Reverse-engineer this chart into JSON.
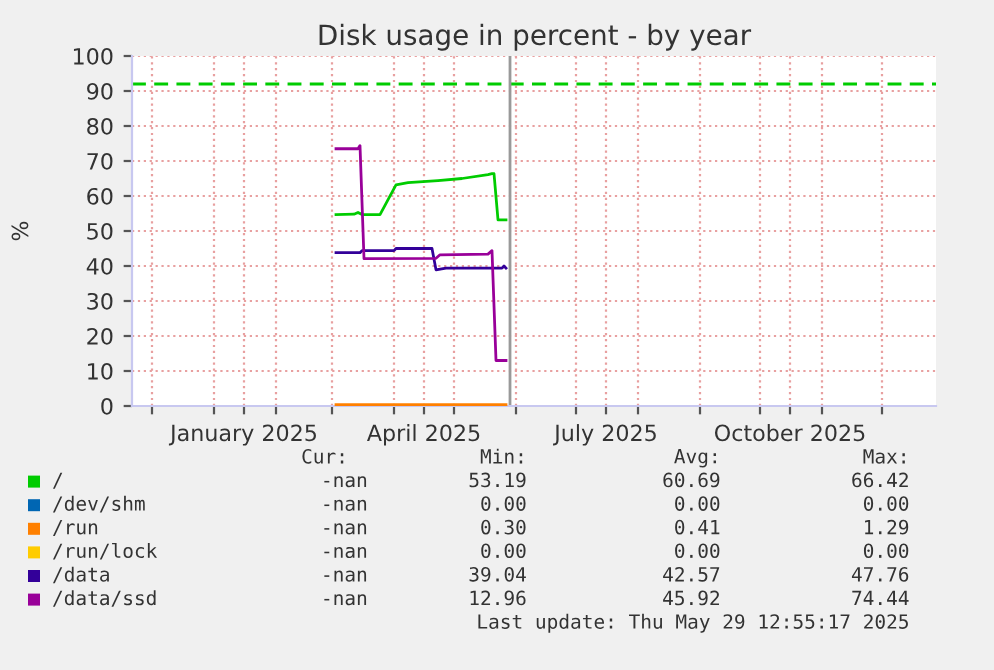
{
  "chart_data": {
    "type": "line",
    "title": "Disk usage in percent - by year",
    "ylabel": "%",
    "ylim": [
      0,
      100
    ],
    "yticks": [
      0,
      10,
      20,
      30,
      40,
      50,
      60,
      70,
      80,
      90,
      100
    ],
    "xlim": [
      "2024-11-21",
      "2025-12-28"
    ],
    "xticks": [
      {
        "value": "2024-12-01",
        "label": null
      },
      {
        "value": "2025-01-01",
        "label": null
      },
      {
        "value": "2025-01-16",
        "label": "January 2025"
      },
      {
        "value": "2025-02-01",
        "label": null
      },
      {
        "value": "2025-03-01",
        "label": null
      },
      {
        "value": "2025-04-01",
        "label": null
      },
      {
        "value": "2025-04-16",
        "label": "April 2025"
      },
      {
        "value": "2025-05-01",
        "label": null
      },
      {
        "value": "2025-06-01",
        "label": null
      },
      {
        "value": "2025-07-01",
        "label": null
      },
      {
        "value": "2025-07-16",
        "label": "July 2025"
      },
      {
        "value": "2025-08-01",
        "label": null
      },
      {
        "value": "2025-09-01",
        "label": null
      },
      {
        "value": "2025-10-01",
        "label": null
      },
      {
        "value": "2025-10-16",
        "label": "October 2025"
      },
      {
        "value": "2025-11-01",
        "label": null
      },
      {
        "value": "2025-12-01",
        "label": null
      }
    ],
    "grid": true,
    "legend": "bottom",
    "marker": "none",
    "line_style": "solid",
    "ref_lines": [
      {
        "axis": "y",
        "value": 92,
        "color": "#00cc00",
        "line_style": "dashed"
      },
      {
        "axis": "x",
        "value": "2025-05-29",
        "color": "#999999",
        "line_style": "solid"
      }
    ],
    "series": [
      {
        "name": "/",
        "color": "#00cc00",
        "x": [
          "2025-03-03",
          "2025-03-12",
          "2025-03-14",
          "2025-03-16",
          "2025-03-25",
          "2025-04-02",
          "2025-04-08",
          "2025-04-23",
          "2025-05-05",
          "2025-05-18",
          "2025-05-20",
          "2025-05-21",
          "2025-05-23",
          "2025-05-27"
        ],
        "values": [
          54.7,
          54.8,
          55.3,
          54.7,
          54.7,
          63.2,
          63.8,
          64.4,
          65,
          66.1,
          66.4,
          66.4,
          53.2,
          53.2
        ]
      },
      {
        "name": "/dev/shm",
        "color": "#0066b3"
      },
      {
        "name": "/run",
        "color": "#ff8000",
        "x": [
          "2025-03-03",
          "2025-05-27"
        ],
        "values": [
          0.4,
          0.4
        ]
      },
      {
        "name": "/run/lock",
        "color": "#ffcc00"
      },
      {
        "name": "/data",
        "color": "#330099",
        "x": [
          "2025-03-03",
          "2025-03-15",
          "2025-03-16",
          "2025-04-01",
          "2025-04-02",
          "2025-04-20",
          "2025-04-22",
          "2025-04-27",
          "2025-05-25",
          "2025-05-26",
          "2025-05-27"
        ],
        "values": [
          43.8,
          43.8,
          44.4,
          44.4,
          45,
          45,
          38.9,
          39.4,
          39.4,
          40,
          39.4
        ]
      },
      {
        "name": "/data/ssd",
        "color": "#990099",
        "x": [
          "2025-03-03",
          "2025-03-14",
          "2025-03-15",
          "2025-03-17",
          "2025-04-22",
          "2025-04-24",
          "2025-05-18",
          "2025-05-20",
          "2025-05-22",
          "2025-05-27"
        ],
        "values": [
          73.5,
          73.5,
          74.4,
          42.1,
          42.2,
          43.2,
          43.4,
          44.4,
          13,
          13
        ]
      }
    ],
    "annotations": [
      "Cur:",
      "Min:",
      "Avg:",
      "Max:",
      "-nan",
      "53.19",
      "60.69",
      "66.42",
      "-nan",
      "0.00",
      "0.00",
      "0.00",
      "-nan",
      "0.30",
      "0.41",
      "1.29",
      "-nan",
      "0.00",
      "0.00",
      "0.00",
      "-nan",
      "39.04",
      "42.57",
      "47.76",
      "-nan",
      "12.96",
      "45.92",
      "74.44",
      "Last update: Thu May 29 12:55:17 2025"
    ]
  }
}
